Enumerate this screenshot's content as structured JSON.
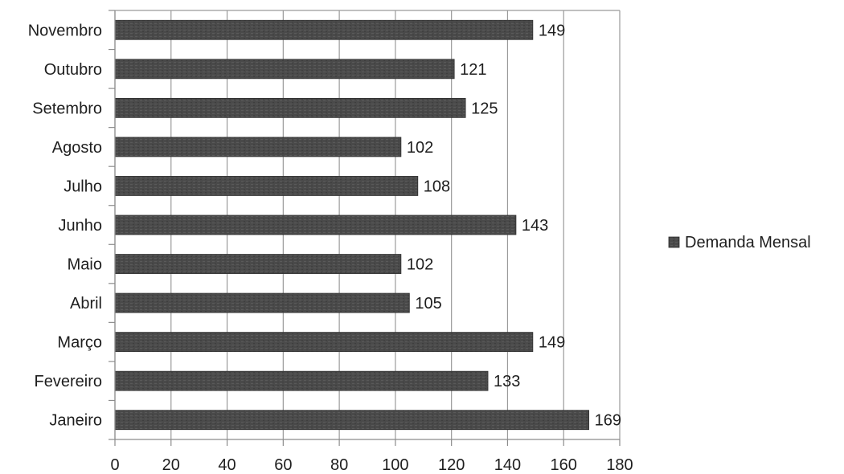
{
  "chart_data": {
    "type": "bar",
    "orientation": "horizontal",
    "categories": [
      "Janeiro",
      "Fevereiro",
      "Março",
      "Abril",
      "Maio",
      "Junho",
      "Julho",
      "Agosto",
      "Setembro",
      "Outubro",
      "Novembro"
    ],
    "series": [
      {
        "name": "Demanda Mensal",
        "values": [
          169,
          133,
          149,
          105,
          102,
          143,
          108,
          102,
          125,
          121,
          149
        ]
      }
    ],
    "data_labels": [
      "169",
      "133",
      "149",
      "105",
      "102",
      "143",
      "108",
      "102",
      "125",
      "121",
      "149"
    ],
    "xlim": [
      0,
      180
    ],
    "xticks": [
      0,
      20,
      40,
      60,
      80,
      100,
      120,
      140,
      160,
      180
    ],
    "tick_labels": [
      "0",
      "20",
      "40",
      "60",
      "80",
      "100",
      "120",
      "140",
      "160",
      "180"
    ],
    "grid": true,
    "legend_position": "right",
    "title": "",
    "xlabel": "",
    "ylabel": "",
    "colors": {
      "bar": "#4a4a4a",
      "grid": "#9a9a9a",
      "axis": "#8c8c8c",
      "text": "#1e1e1e"
    }
  }
}
